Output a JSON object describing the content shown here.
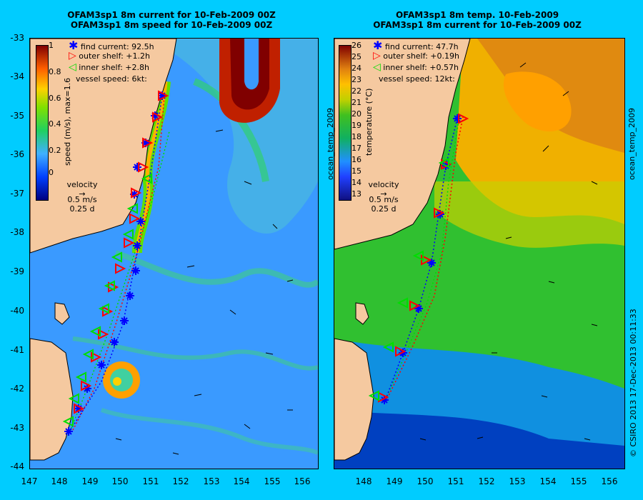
{
  "panels": [
    {
      "title_line1": "OFAM3sp1 8m current for 10-Feb-2009 00Z",
      "title_line2": "OFAM3sp1 8m speed for 10-Feb-2009 00Z",
      "colorbar_label": "speed (m/s), max=1.6",
      "colorbar_ticks": [
        "1",
        "0.8",
        "0.6",
        "0.4",
        "0.2",
        "0"
      ],
      "legend": {
        "find_current": "find current: 92.5h",
        "outer_shelf": "outer shelf: +1.2h",
        "inner_shelf": "inner shelf: +2.8h",
        "vessel_speed": "vessel speed: 6kt:"
      },
      "velocity_key": {
        "title": "velocity",
        "speed": "0.5 m/s",
        "time": "0.25 d"
      }
    },
    {
      "title_line1": "OFAM3sp1 8m temp. 10-Feb-2009",
      "title_line2": "OFAM3sp1 8m current for 10-Feb-2009 00Z",
      "colorbar_label": "temperature (°C)",
      "colorbar_side_label": "ocean_temp_2009",
      "colorbar_ticks": [
        "26",
        "25",
        "24",
        "23",
        "22",
        "21",
        "20",
        "19",
        "18",
        "17",
        "16",
        "15",
        "14",
        "13"
      ],
      "legend": {
        "find_current": "find current: 47.7h",
        "outer_shelf": "outer shelf: +0.19h",
        "inner_shelf": "inner shelf: +0.57h",
        "vessel_speed": "vessel speed: 12kt:"
      },
      "velocity_key": {
        "title": "velocity",
        "speed": "0.5 m/s",
        "time": "0.25 d"
      }
    }
  ],
  "y_ticks": [
    "-33",
    "-34",
    "-35",
    "-36",
    "-37",
    "-38",
    "-39",
    "-40",
    "-41",
    "-42",
    "-43",
    "-44"
  ],
  "x_ticks_left": [
    "147",
    "148",
    "149",
    "150",
    "151",
    "152",
    "153",
    "154",
    "155",
    "156"
  ],
  "x_ticks_right": [
    "148",
    "149",
    "150",
    "151",
    "152",
    "153",
    "154",
    "155",
    "156"
  ],
  "right_side_label": "ocean_temp_2009",
  "copyright": "© CSIRO 2013   17-Dec-2013 00:11:33",
  "colors": {
    "background": "#00ccff",
    "land": "#f5c9a0",
    "find_current": "#0000ff",
    "outer_shelf": "#ff0000",
    "inner_shelf": "#00dd00"
  },
  "icons": [
    "asterisk-marker",
    "triangle-right-marker",
    "triangle-left-marker",
    "velocity-arrow"
  ]
}
